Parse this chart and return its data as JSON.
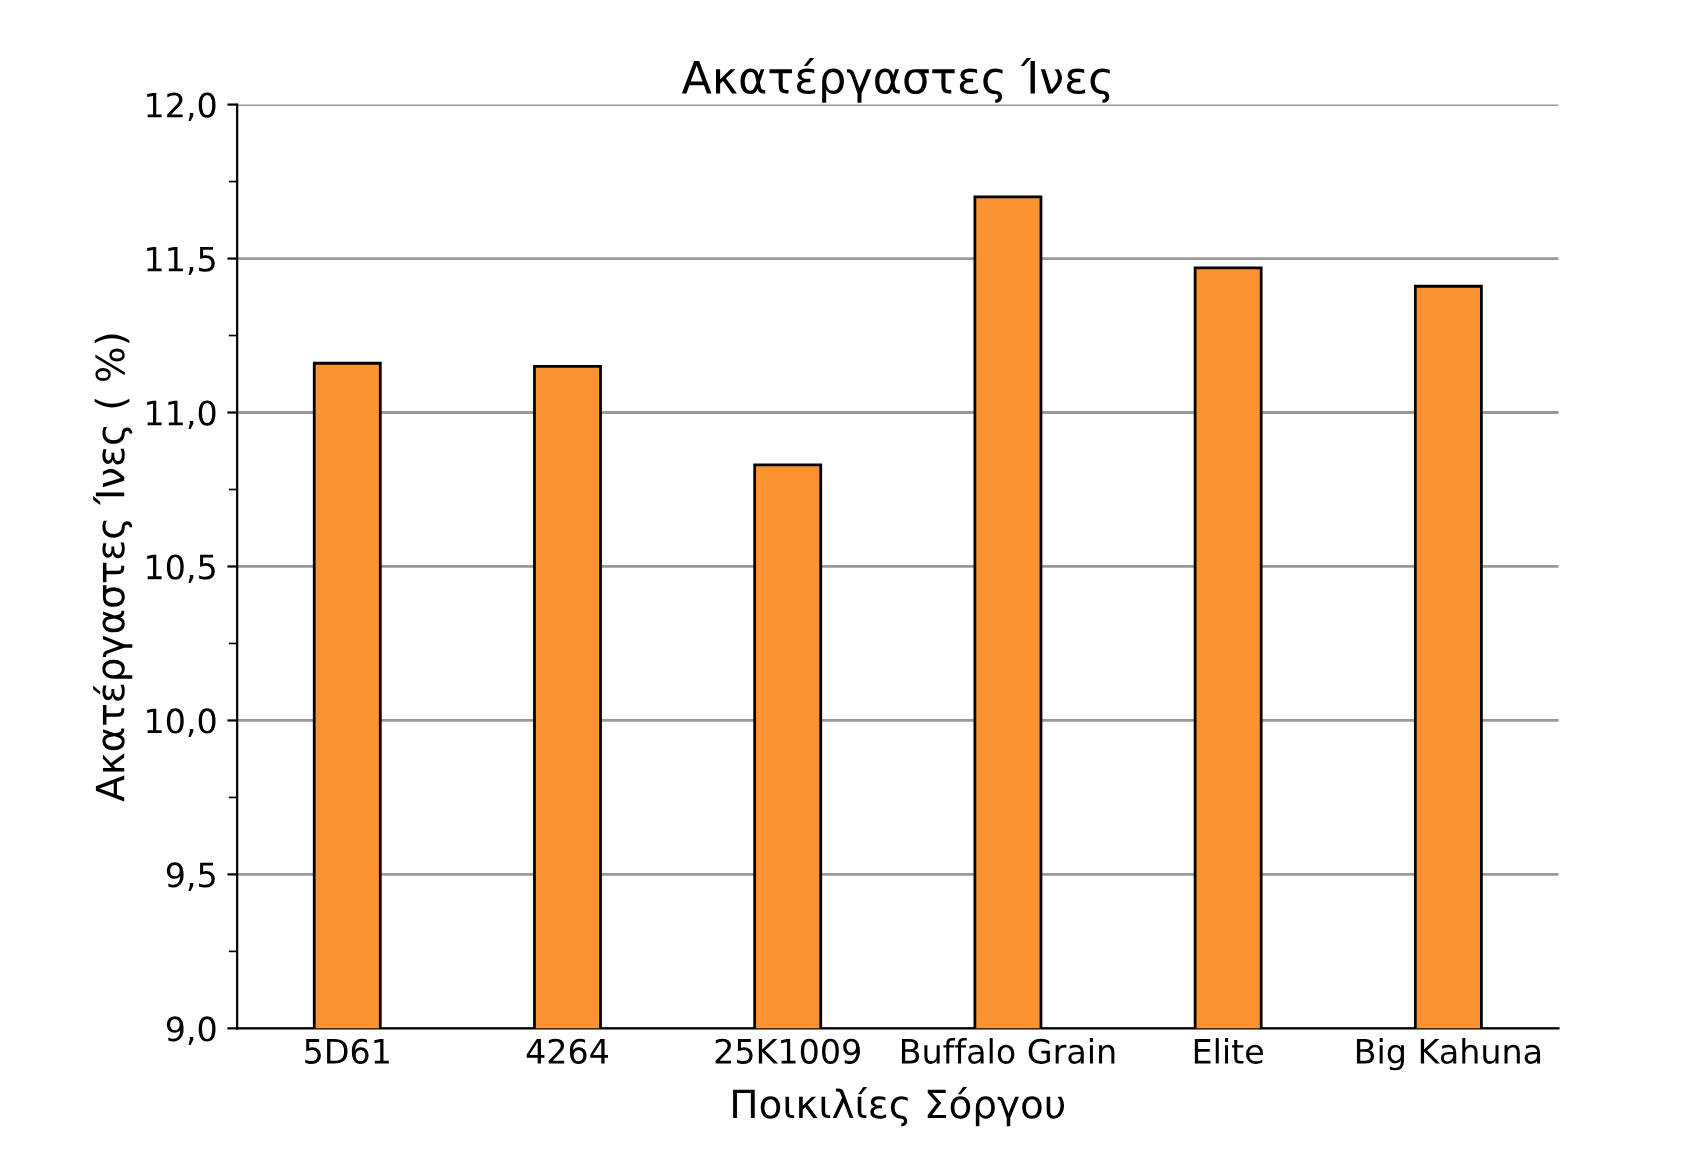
{
  "chart_data": {
    "type": "bar",
    "title": "Ακατέργαστες Ίνες",
    "xlabel": "Ποικιλίες Σόργου",
    "ylabel": "Ακατέργαστες Ίνες ( %)",
    "categories": [
      "5D61",
      "4264",
      "25K1009",
      "Buffalo Grain",
      "Elite",
      "Big Kahuna"
    ],
    "values": [
      11.16,
      11.15,
      10.83,
      11.7,
      11.47,
      11.41
    ],
    "color": "#fb9333",
    "ylim": [
      9.0,
      12.0
    ],
    "yticks": [
      {
        "value": 9.0,
        "label": "9,0"
      },
      {
        "value": 9.5,
        "label": "9,5"
      },
      {
        "value": 10.0,
        "label": "10,0"
      },
      {
        "value": 10.5,
        "label": "10,5"
      },
      {
        "value": 11.0,
        "label": "11,0"
      },
      {
        "value": 11.5,
        "label": "11,5"
      },
      {
        "value": 12.0,
        "label": "12,0"
      }
    ],
    "grid": "y"
  }
}
